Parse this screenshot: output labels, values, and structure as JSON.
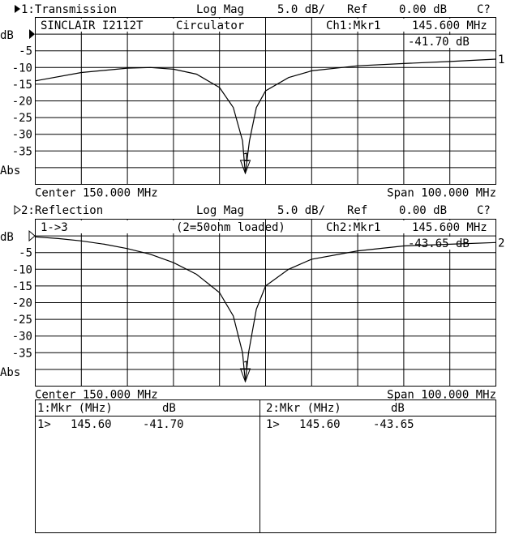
{
  "colors": {
    "background": "#ffffff",
    "ink": "#000000"
  },
  "chart_data": [
    {
      "type": "line",
      "channel_title": "1:Transmission",
      "format": "Log Mag",
      "scale": "5.0 dB/",
      "ref_label": "Ref",
      "ref_value": "0.00 dB",
      "status": "C?",
      "annotation_cells": [
        "SINCLAIR I2112T",
        "Circulator",
        "Ch1:Mkr1",
        "145.600 MHz",
        "-41.70 dB"
      ],
      "ylabel": "dB",
      "ybottom_label": "Abs",
      "ytick_labels": [
        "-5",
        "-10",
        "-15",
        "-20",
        "-25",
        "-30",
        "-35"
      ],
      "yticks": [
        -5,
        -10,
        -15,
        -20,
        -25,
        -30,
        -35
      ],
      "ylim": [
        -45,
        5
      ],
      "xlim": [
        100,
        200
      ],
      "center_label": "Center 150.000 MHz",
      "span_label": "Span 100.000 MHz",
      "trace_label": "1",
      "marker": {
        "x": 145.6,
        "y": -41.7,
        "label": "1"
      },
      "grid": true,
      "x": [
        100,
        110,
        120,
        125,
        130,
        135,
        140,
        143,
        145,
        145.6,
        146.5,
        148,
        150,
        155,
        160,
        170,
        180,
        190,
        200
      ],
      "y": [
        -14,
        -11.5,
        -10.2,
        -10,
        -10.5,
        -12,
        -16,
        -22,
        -32,
        -41.7,
        -32,
        -22,
        -17,
        -13,
        -11,
        -9.5,
        -8.8,
        -8.2,
        -7.5
      ]
    },
    {
      "type": "line",
      "channel_title": "2:Reflection",
      "format": "Log Mag",
      "scale": "5.0 dB/",
      "ref_label": "Ref",
      "ref_value": "0.00 dB",
      "status": "C?",
      "annotation_cells": [
        "1->3",
        "(2=50ohm loaded)",
        "Ch2:Mkr1",
        "145.600 MHz",
        "-43.65 dB"
      ],
      "ylabel": "dB",
      "ybottom_label": "Abs",
      "ytick_labels": [
        "-5",
        "-10",
        "-15",
        "-20",
        "-25",
        "-30",
        "-35"
      ],
      "yticks": [
        -5,
        -10,
        -15,
        -20,
        -25,
        -30,
        -35
      ],
      "ylim": [
        -45,
        5
      ],
      "xlim": [
        100,
        200
      ],
      "center_label": "Center 150.000 MHz",
      "span_label": "Span 100.000 MHz",
      "trace_label": "2",
      "marker": {
        "x": 145.6,
        "y": -43.65,
        "label": "1"
      },
      "grid": true,
      "x": [
        100,
        105,
        110,
        115,
        120,
        125,
        130,
        135,
        140,
        143,
        145,
        145.6,
        146.3,
        148,
        150,
        155,
        160,
        170,
        180,
        190,
        200
      ],
      "y": [
        -0.3,
        -0.8,
        -1.5,
        -2.5,
        -3.8,
        -5.5,
        -8,
        -11.5,
        -17,
        -24,
        -35,
        -43.65,
        -35,
        -22,
        -15,
        -10,
        -7,
        -4.5,
        -3,
        -2.5,
        -2
      ]
    }
  ],
  "marker_table": [
    {
      "header": "1:Mkr (MHz)",
      "unit": "dB",
      "rows": [
        {
          "id": "1>",
          "freq": "145.60",
          "value": "-41.70"
        }
      ]
    },
    {
      "header": "2:Mkr (MHz)",
      "unit": "dB",
      "rows": [
        {
          "id": "1>",
          "freq": "145.60",
          "value": "-43.65"
        }
      ]
    }
  ]
}
